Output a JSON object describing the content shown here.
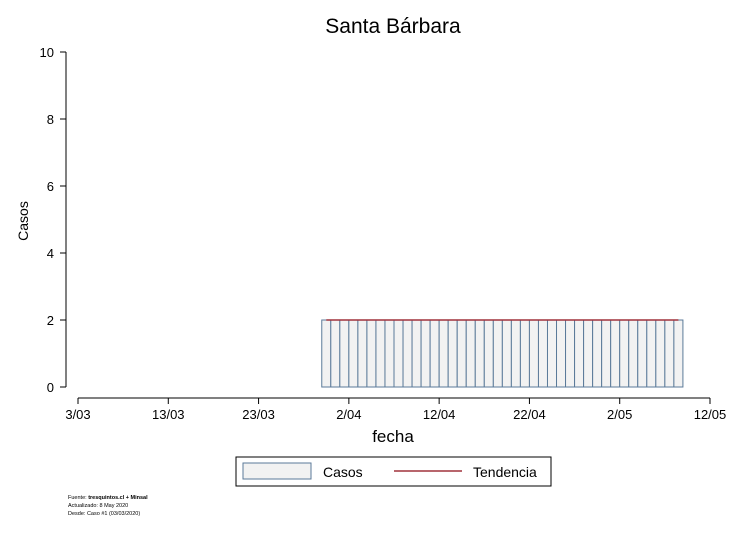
{
  "chart_data": {
    "type": "bar",
    "title": "Santa Bárbara",
    "xlabel": "fecha",
    "ylabel": "Casos",
    "xlim": [
      "2020-03-03",
      "2020-05-12"
    ],
    "ylim": [
      0,
      10
    ],
    "x_ticks": [
      "3/03",
      "13/03",
      "23/03",
      "2/04",
      "12/04",
      "22/04",
      "2/05",
      "12/05"
    ],
    "y_ticks": [
      "0",
      "2",
      "4",
      "6",
      "8",
      "10"
    ],
    "bars": {
      "name": "Casos",
      "start": "2020-03-30",
      "end": "2020-05-08",
      "value": 2,
      "fill": "#f2f2f2",
      "stroke": "#5b7a99"
    },
    "trend": {
      "name": "Tendencia",
      "start": "2020-03-30",
      "end": "2020-05-08",
      "value": 2,
      "color": "#a0323c"
    },
    "legend": {
      "position": "bottom",
      "items": [
        "Casos",
        "Tendencia"
      ]
    },
    "grid": false
  },
  "footer": {
    "source_prefix": "Fuente: ",
    "source_bold": "tresquintos.cl + Minsal",
    "updated": "Actualizado: 8 May 2020",
    "since": "Desde: Caso #1  (03/03/2020)"
  }
}
